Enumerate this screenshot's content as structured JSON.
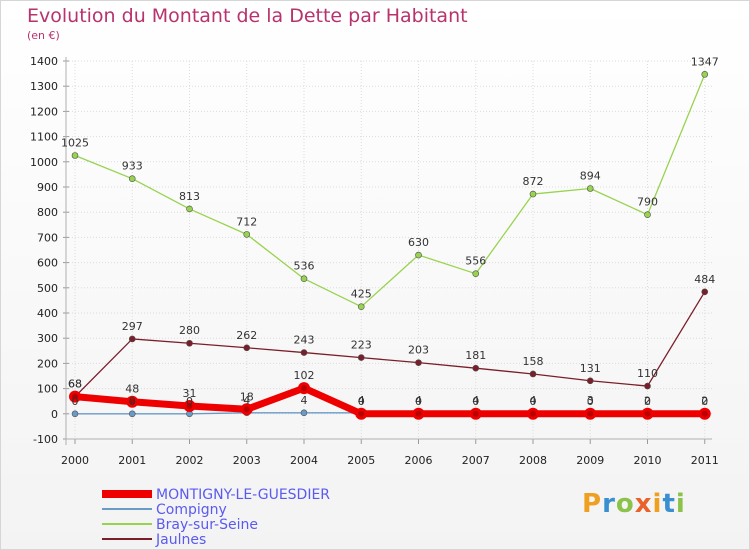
{
  "title": "Evolution du Montant de la Dette par Habitant",
  "unit_label": "(en €)",
  "logo": "Proxiti",
  "chart_data": {
    "type": "line",
    "title": "Evolution du Montant de la Dette par Habitant",
    "ylabel": "(en €)",
    "x": [
      "2000",
      "2001",
      "2002",
      "2003",
      "2004",
      "2005",
      "2006",
      "2007",
      "2008",
      "2009",
      "2010",
      "2011"
    ],
    "ylim": [
      -100,
      1400
    ],
    "yticks": [
      -100,
      0,
      100,
      200,
      300,
      400,
      500,
      600,
      700,
      800,
      900,
      1000,
      1100,
      1200,
      1300,
      1400
    ],
    "grid": true,
    "legend_position": "bottom-left",
    "series": [
      {
        "name": "Jaulnes",
        "color": "#7a1f2a",
        "values": [
          68,
          297,
          280,
          262,
          243,
          223,
          203,
          181,
          158,
          131,
          110,
          484
        ],
        "labels": [
          "68",
          "297",
          "280",
          "262",
          "243",
          "223",
          "203",
          "181",
          "158",
          "131",
          "110",
          "484"
        ]
      },
      {
        "name": "Bray-sur-Seine",
        "color": "#98d34f",
        "values": [
          1025,
          933,
          813,
          712,
          536,
          425,
          630,
          556,
          872,
          894,
          790,
          1347
        ],
        "labels": [
          "1025",
          "933",
          "813",
          "712",
          "536",
          "425",
          "630",
          "556",
          "872",
          "894",
          "790",
          "1347"
        ]
      },
      {
        "name": "Compigny",
        "color": "#6a9bc7",
        "values": [
          0,
          0,
          0,
          4,
          4,
          4,
          4,
          4,
          4,
          3,
          2,
          2
        ],
        "labels": [
          "0",
          "0",
          "0",
          "4",
          "4",
          "4",
          "4",
          "4",
          "4",
          "3",
          "2",
          "2"
        ]
      },
      {
        "name": "MONTIGNY-LE-GUESDIER",
        "color": "#ee0000",
        "values": [
          68,
          48,
          31,
          18,
          102,
          0,
          0,
          0,
          0,
          0,
          0,
          0
        ],
        "labels": [
          "68",
          "48",
          "31",
          "18",
          "102",
          "0",
          "0",
          "0",
          "0",
          "0",
          "0",
          "0"
        ]
      }
    ]
  }
}
